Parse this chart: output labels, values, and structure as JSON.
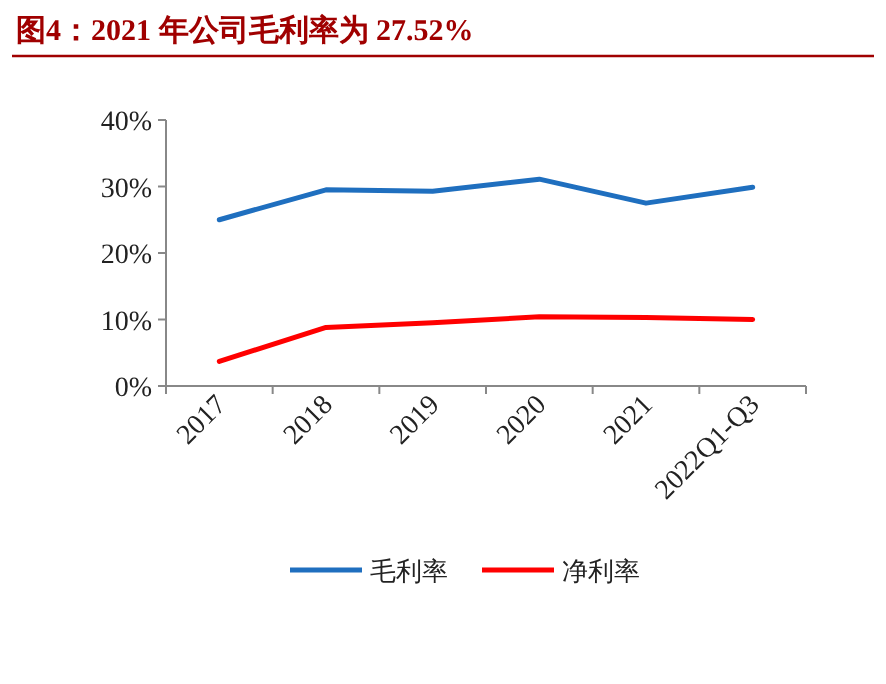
{
  "chart_data": {
    "type": "line",
    "title": "图4：2021 年公司毛利率为 27.52%",
    "categories": [
      "2017",
      "2018",
      "2019",
      "2020",
      "2021",
      "2022Q1-Q3"
    ],
    "series": [
      {
        "name": "毛利率",
        "color": "#1f6fbf",
        "values": [
          25.0,
          29.5,
          29.3,
          31.1,
          27.5,
          29.9
        ]
      },
      {
        "name": "净利率",
        "color": "#ff0000",
        "values": [
          3.7,
          8.8,
          9.5,
          10.4,
          10.3,
          10.0
        ]
      }
    ],
    "ylim": [
      0,
      40
    ],
    "yticks": [
      {
        "value": 0,
        "label": "0%"
      },
      {
        "value": 10,
        "label": "10%"
      },
      {
        "value": 20,
        "label": "20%"
      },
      {
        "value": 30,
        "label": "30%"
      },
      {
        "value": 40,
        "label": "40%"
      }
    ],
    "grid": false,
    "legend": "bottom",
    "marker": "none",
    "line_style": "solid"
  }
}
